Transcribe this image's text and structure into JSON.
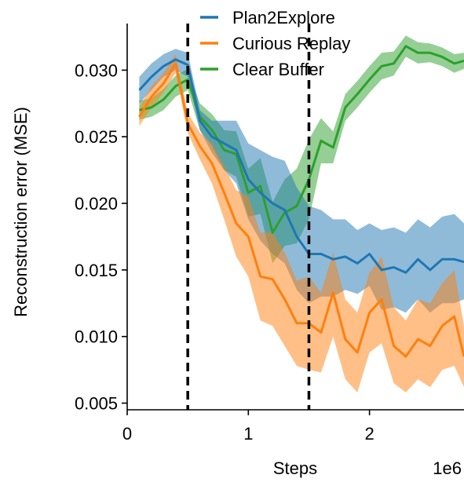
{
  "chart_data": {
    "type": "line",
    "xlabel": "Steps",
    "ylabel": "Reconstruction error (MSE)",
    "x_offset_text": "1e6",
    "xlim": [
      0,
      2.78
    ],
    "ylim": [
      0.0045,
      0.0335
    ],
    "xticks": [
      0,
      1,
      2
    ],
    "xtick_labels": [
      "0",
      "1",
      "2"
    ],
    "yticks": [
      0.005,
      0.01,
      0.015,
      0.02,
      0.025,
      0.03
    ],
    "ytick_labels": [
      "0.005",
      "0.010",
      "0.015",
      "0.020",
      "0.025",
      "0.030"
    ],
    "vlines": [
      0.5,
      1.5
    ],
    "legend_position": "top",
    "x": [
      0.1,
      0.2,
      0.3,
      0.4,
      0.5,
      0.6,
      0.7,
      0.8,
      0.9,
      1.0,
      1.1,
      1.2,
      1.3,
      1.4,
      1.5,
      1.6,
      1.7,
      1.8,
      1.9,
      2.0,
      2.1,
      2.2,
      2.3,
      2.4,
      2.5,
      2.6,
      2.7,
      2.78
    ],
    "series": [
      {
        "name": "Plan2Explore",
        "color": "#1f77b4",
        "values": [
          0.0285,
          0.0295,
          0.0303,
          0.0308,
          0.0304,
          0.0262,
          0.025,
          0.0245,
          0.024,
          0.0218,
          0.0208,
          0.02,
          0.0195,
          0.0175,
          0.0162,
          0.0162,
          0.0158,
          0.016,
          0.0155,
          0.0162,
          0.015,
          0.0152,
          0.0148,
          0.0158,
          0.015,
          0.0158,
          0.0158,
          0.0156
        ],
        "lower": [
          0.0275,
          0.0285,
          0.0295,
          0.03,
          0.0295,
          0.0255,
          0.0238,
          0.0225,
          0.0215,
          0.0188,
          0.0172,
          0.0162,
          0.0155,
          0.0135,
          0.0125,
          0.013,
          0.013,
          0.0135,
          0.0132,
          0.0138,
          0.012,
          0.0122,
          0.0118,
          0.0128,
          0.0118,
          0.0125,
          0.0125,
          0.0128
        ],
        "upper": [
          0.0295,
          0.0305,
          0.0312,
          0.0316,
          0.0313,
          0.027,
          0.0262,
          0.0262,
          0.0262,
          0.0245,
          0.024,
          0.0235,
          0.0232,
          0.0212,
          0.0198,
          0.0195,
          0.0188,
          0.0188,
          0.018,
          0.0185,
          0.018,
          0.0182,
          0.0178,
          0.0188,
          0.0182,
          0.019,
          0.0192,
          0.0185
        ]
      },
      {
        "name": "Curious Replay",
        "color": "#ff7f0e",
        "values": [
          0.0265,
          0.028,
          0.029,
          0.0305,
          0.026,
          0.0243,
          0.023,
          0.0208,
          0.0185,
          0.0175,
          0.0145,
          0.0143,
          0.0128,
          0.011,
          0.011,
          0.0103,
          0.0133,
          0.0098,
          0.0088,
          0.0118,
          0.0128,
          0.0093,
          0.0085,
          0.0098,
          0.0093,
          0.0108,
          0.0115,
          0.0085
        ],
        "lower": [
          0.0258,
          0.0272,
          0.0283,
          0.0298,
          0.0253,
          0.0233,
          0.0215,
          0.0188,
          0.016,
          0.0145,
          0.0112,
          0.0108,
          0.0093,
          0.0078,
          0.0075,
          0.0073,
          0.01,
          0.0068,
          0.0058,
          0.0088,
          0.0095,
          0.0065,
          0.0058,
          0.0068,
          0.0062,
          0.0075,
          0.0078,
          0.0062
        ],
        "upper": [
          0.0272,
          0.0288,
          0.0298,
          0.0312,
          0.0268,
          0.0253,
          0.0245,
          0.0228,
          0.021,
          0.0205,
          0.0178,
          0.0178,
          0.0163,
          0.0142,
          0.0145,
          0.0133,
          0.0163,
          0.0128,
          0.0118,
          0.0148,
          0.016,
          0.0122,
          0.0112,
          0.0128,
          0.0125,
          0.014,
          0.015,
          0.0108
        ]
      },
      {
        "name": "Clear Buffer",
        "color": "#2ca02c",
        "values": [
          0.027,
          0.0272,
          0.0278,
          0.0288,
          0.0293,
          0.0265,
          0.0255,
          0.024,
          0.0237,
          0.0208,
          0.0213,
          0.0178,
          0.0193,
          0.0198,
          0.0218,
          0.0247,
          0.0242,
          0.0272,
          0.0282,
          0.0293,
          0.0303,
          0.0305,
          0.0318,
          0.0313,
          0.0313,
          0.031,
          0.0305,
          0.0307
        ],
        "lower": [
          0.0263,
          0.0265,
          0.027,
          0.028,
          0.0285,
          0.0255,
          0.0243,
          0.0225,
          0.022,
          0.019,
          0.0192,
          0.0155,
          0.0168,
          0.017,
          0.0188,
          0.023,
          0.023,
          0.0262,
          0.0272,
          0.0283,
          0.0293,
          0.0296,
          0.031,
          0.0305,
          0.0306,
          0.0303,
          0.0298,
          0.0301
        ],
        "upper": [
          0.0277,
          0.0279,
          0.0286,
          0.0296,
          0.0301,
          0.0275,
          0.0267,
          0.0255,
          0.0254,
          0.0226,
          0.0234,
          0.0201,
          0.0218,
          0.0226,
          0.0248,
          0.0264,
          0.0254,
          0.0282,
          0.0292,
          0.0303,
          0.0313,
          0.0314,
          0.0326,
          0.0321,
          0.032,
          0.0317,
          0.0312,
          0.0313
        ]
      }
    ]
  }
}
